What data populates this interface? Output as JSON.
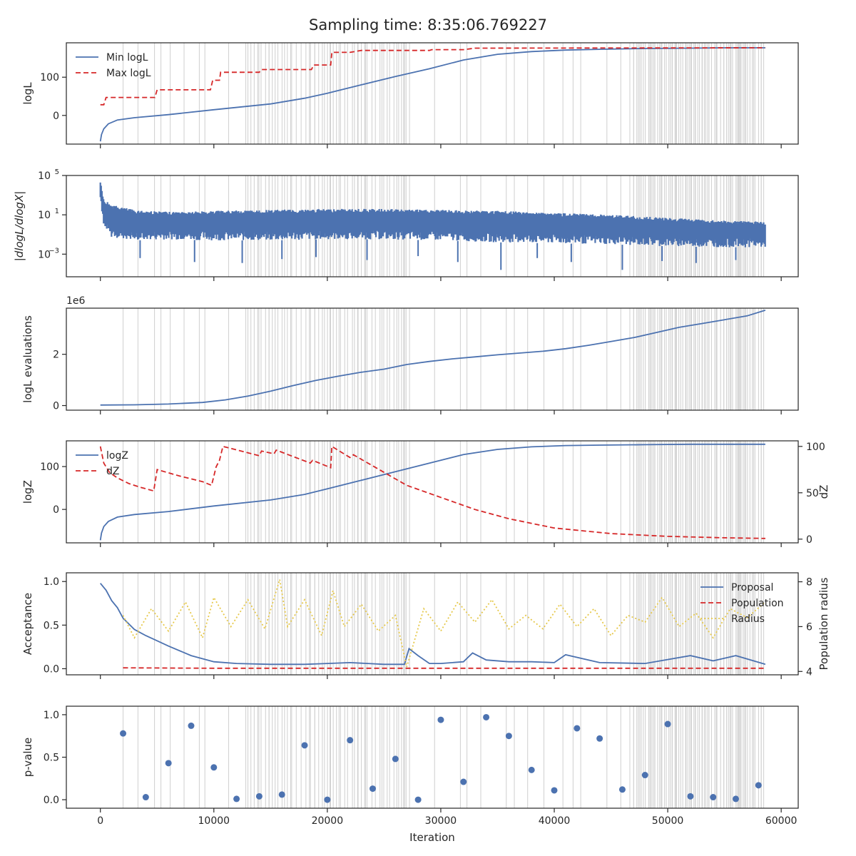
{
  "title": "Sampling time: 8:35:06.769227",
  "colors": {
    "blue": "#4c72b0",
    "red": "#d62728",
    "yellow": "#e6c84a",
    "vline": "#d3d3d3",
    "axis": "#262626"
  },
  "shared_x": {
    "label": "Iteration",
    "lim": [
      -3000,
      61500
    ],
    "ticks": [
      0,
      10000,
      20000,
      30000,
      40000,
      50000,
      60000
    ],
    "tick_labels": [
      "0",
      "10000",
      "20000",
      "30000",
      "40000",
      "50000",
      "60000"
    ],
    "max_iteration": 58600
  },
  "chart_data": [
    {
      "type": "line",
      "ylabel": "logL",
      "ylim": [
        -75,
        190
      ],
      "yticks": [
        0,
        100
      ],
      "ytick_labels": [
        "0",
        "100"
      ],
      "legend": "top-left",
      "series": [
        {
          "name": "Min logL",
          "style": "solid",
          "color": "blue",
          "x": [
            0,
            100,
            300,
            700,
            1500,
            3000,
            6000,
            10000,
            15000,
            18000,
            20000,
            23000,
            26000,
            29000,
            32000,
            35000,
            38000,
            41000,
            44000,
            48000,
            52000,
            55000,
            58600
          ],
          "y": [
            -68,
            -50,
            -35,
            -22,
            -12,
            -6,
            2,
            15,
            30,
            45,
            58,
            80,
            102,
            122,
            145,
            160,
            167,
            171,
            173,
            175,
            176,
            177,
            177
          ]
        },
        {
          "name": "Max logL",
          "style": "dashed",
          "color": "red",
          "step": true,
          "x": [
            0,
            300,
            500,
            4800,
            5000,
            9700,
            9900,
            10500,
            10600,
            14000,
            14200,
            18600,
            18800,
            20300,
            20400,
            22000,
            23000,
            29000,
            29200,
            32000,
            33000,
            58600
          ],
          "y": [
            28,
            28,
            47,
            47,
            67,
            67,
            92,
            92,
            113,
            113,
            120,
            120,
            132,
            132,
            165,
            165,
            170,
            170,
            172,
            172,
            176,
            177
          ]
        }
      ]
    },
    {
      "type": "line",
      "ylabel": "|dlogL/dlogX|",
      "yscale": "log",
      "ylim_exp": [
        -5.3,
        5
      ],
      "yticks_exp": [
        -3,
        1,
        5
      ],
      "ytick_labels": [
        "10",
        "10",
        "10"
      ],
      "ytick_sup": [
        "−3",
        "1",
        "5"
      ],
      "series": [
        {
          "name": "",
          "color": "blue",
          "fill": true,
          "x": [
            0,
            300,
            1000,
            3000,
            6000,
            10000,
            15000,
            20000,
            25000,
            30000,
            35000,
            40000,
            45000,
            50000,
            55000,
            58600
          ],
          "upper_exp": [
            4.6,
            2.6,
            2.0,
            1.5,
            1.3,
            1.4,
            1.5,
            1.6,
            1.6,
            1.5,
            1.4,
            1.2,
            1.0,
            0.7,
            0.4,
            0.3
          ],
          "lower_exp": [
            2.2,
            -0.5,
            -1.3,
            -1.6,
            -1.5,
            -1.6,
            -1.6,
            -1.5,
            -1.5,
            -1.6,
            -1.8,
            -1.9,
            -2.0,
            -2.2,
            -2.3,
            -2.3
          ],
          "spike_x": [
            3500,
            8300,
            12500,
            16000,
            19000,
            23500,
            28000,
            31500,
            35300,
            38500,
            41500,
            46000,
            49500,
            52500,
            56000
          ],
          "spike_y_exp": [
            -3.4,
            -3.8,
            -3.9,
            -3.5,
            -3.3,
            -3.6,
            -3.2,
            -3.8,
            -4.6,
            -3.4,
            -3.8,
            -4.6,
            -3.7,
            -3.9,
            -3.6
          ]
        }
      ]
    },
    {
      "type": "line",
      "ylabel": "logL evaluations",
      "offset_text": "1e6",
      "ylim": [
        -0.18,
        3.8
      ],
      "yticks": [
        0,
        2
      ],
      "ytick_labels": [
        "0",
        "2"
      ],
      "series": [
        {
          "name": "",
          "color": "blue",
          "x": [
            0,
            3000,
            6000,
            9000,
            11000,
            13000,
            15000,
            17000,
            19000,
            21000,
            23000,
            25000,
            27000,
            29000,
            31000,
            33000,
            35000,
            37000,
            39000,
            41000,
            43000,
            45000,
            47000,
            49000,
            51000,
            53000,
            55000,
            57000,
            58600
          ],
          "y": [
            0.02,
            0.03,
            0.06,
            0.12,
            0.22,
            0.37,
            0.56,
            0.78,
            0.98,
            1.15,
            1.3,
            1.42,
            1.6,
            1.72,
            1.82,
            1.9,
            1.98,
            2.05,
            2.12,
            2.22,
            2.35,
            2.5,
            2.65,
            2.85,
            3.05,
            3.2,
            3.35,
            3.5,
            3.72
          ]
        }
      ]
    },
    {
      "type": "line",
      "ylabel": "logZ",
      "ylim": [
        -78,
        160
      ],
      "yticks": [
        0,
        100
      ],
      "ytick_labels": [
        "0",
        "100"
      ],
      "y2label": "dZ",
      "y2lim": [
        -4,
        106
      ],
      "y2ticks": [
        0,
        50,
        100
      ],
      "y2tick_labels": [
        "0",
        "50",
        "100"
      ],
      "legend": "top-left",
      "series": [
        {
          "name": "logZ",
          "style": "solid",
          "color": "blue",
          "axis": "left",
          "x": [
            0,
            100,
            300,
            700,
            1500,
            3000,
            6000,
            10000,
            15000,
            18000,
            20000,
            23000,
            26000,
            29000,
            32000,
            35000,
            38000,
            41000,
            44000,
            48000,
            52000,
            55000,
            58600
          ],
          "y": [
            -72,
            -55,
            -40,
            -28,
            -18,
            -12,
            -5,
            8,
            22,
            35,
            48,
            68,
            88,
            108,
            128,
            140,
            146,
            149,
            150,
            151,
            152,
            152,
            152
          ]
        },
        {
          "name": "dZ",
          "style": "dashed",
          "color": "red",
          "axis": "right",
          "x": [
            0,
            300,
            800,
            1500,
            2500,
            3500,
            4700,
            5000,
            7000,
            9000,
            9800,
            10200,
            10500,
            10800,
            14000,
            14200,
            15300,
            15500,
            18500,
            18700,
            20300,
            20400,
            22000,
            22300,
            25000,
            27000,
            30000,
            33000,
            36000,
            40000,
            45000,
            50000,
            55000,
            58600
          ],
          "y": [
            100,
            82,
            72,
            66,
            60,
            56,
            52,
            75,
            68,
            62,
            58,
            78,
            85,
            100,
            90,
            95,
            92,
            96,
            82,
            85,
            77,
            100,
            88,
            91,
            72,
            58,
            45,
            32,
            22,
            12,
            6,
            3,
            1.5,
            0.8
          ]
        }
      ]
    },
    {
      "type": "line",
      "ylabel": "Acceptance",
      "ylim": [
        -0.07,
        1.1
      ],
      "yticks": [
        0.0,
        0.5,
        1.0
      ],
      "ytick_labels": [
        "0.0",
        "0.5",
        "1.0"
      ],
      "y2label": "Population radius",
      "y2lim": [
        3.85,
        8.4
      ],
      "y2ticks": [
        4,
        6,
        8
      ],
      "y2tick_labels": [
        "4",
        "6",
        "8"
      ],
      "legend": "top-right",
      "series": [
        {
          "name": "Proposal",
          "style": "solid",
          "color": "blue",
          "axis": "left",
          "x": [
            0,
            500,
            1000,
            1500,
            2000,
            3000,
            4000,
            5000,
            6000,
            8000,
            10000,
            12000,
            15000,
            18000,
            20000,
            22000,
            25000,
            26800,
            27200,
            28000,
            29000,
            30000,
            32000,
            32800,
            34000,
            36000,
            38000,
            40000,
            41000,
            44000,
            48000,
            52000,
            54000,
            56000,
            58600
          ],
          "y": [
            0.98,
            0.9,
            0.78,
            0.7,
            0.58,
            0.45,
            0.38,
            0.32,
            0.26,
            0.15,
            0.08,
            0.06,
            0.05,
            0.05,
            0.06,
            0.07,
            0.05,
            0.05,
            0.23,
            0.15,
            0.06,
            0.06,
            0.08,
            0.18,
            0.1,
            0.08,
            0.08,
            0.07,
            0.16,
            0.07,
            0.06,
            0.15,
            0.09,
            0.15,
            0.05
          ]
        },
        {
          "name": "Population",
          "style": "dashed",
          "color": "red",
          "axis": "left",
          "x": [
            2000,
            10000,
            20000,
            30000,
            40000,
            50000,
            58600
          ],
          "y": [
            0.01,
            0.005,
            0.005,
            0.005,
            0.005,
            0.005,
            0.005
          ]
        },
        {
          "name": "Radius",
          "style": "dotted",
          "color": "yellow",
          "axis": "right",
          "x": [
            2000,
            3000,
            4500,
            6000,
            7500,
            9000,
            10000,
            11500,
            13000,
            14500,
            15800,
            16500,
            18000,
            19500,
            20500,
            21500,
            23000,
            24500,
            26000,
            27000,
            28500,
            30000,
            31500,
            33000,
            34500,
            36000,
            37500,
            39000,
            40500,
            42000,
            43500,
            45000,
            46500,
            48000,
            49500,
            51000,
            52500,
            54000,
            55500,
            57000,
            58600
          ],
          "y": [
            6.5,
            5.5,
            6.8,
            5.8,
            7.1,
            5.5,
            7.3,
            6.0,
            7.2,
            5.9,
            8.1,
            6.0,
            7.2,
            5.6,
            7.6,
            6.0,
            7.0,
            5.8,
            6.5,
            4.2,
            6.8,
            5.8,
            7.1,
            6.2,
            7.2,
            5.9,
            6.5,
            5.9,
            7.0,
            6.0,
            6.8,
            5.6,
            6.5,
            6.2,
            7.3,
            6.0,
            6.6,
            5.5,
            6.8,
            6.4,
            7.1
          ]
        }
      ]
    },
    {
      "type": "scatter",
      "ylabel": "p-value",
      "xlabel": "Iteration",
      "ylim": [
        -0.1,
        1.1
      ],
      "yticks": [
        0.0,
        0.5,
        1.0
      ],
      "ytick_labels": [
        "0.0",
        "0.5",
        "1.0"
      ],
      "series": [
        {
          "name": "",
          "color": "blue",
          "x": [
            2000,
            4000,
            6000,
            8000,
            10000,
            12000,
            14000,
            16000,
            18000,
            20000,
            22000,
            24000,
            26000,
            28000,
            30000,
            32000,
            34000,
            36000,
            38000,
            40000,
            42000,
            44000,
            46000,
            48000,
            50000,
            52000,
            54000,
            56000,
            58000
          ],
          "y": [
            0.78,
            0.03,
            0.43,
            0.87,
            0.38,
            0.01,
            0.04,
            0.06,
            0.64,
            0.0,
            0.7,
            0.13,
            0.48,
            0.0,
            0.94,
            0.21,
            0.97,
            0.75,
            0.35,
            0.11,
            0.84,
            0.72,
            0.12,
            0.29,
            0.89,
            0.04,
            0.03,
            0.01,
            0.17
          ]
        }
      ]
    }
  ]
}
